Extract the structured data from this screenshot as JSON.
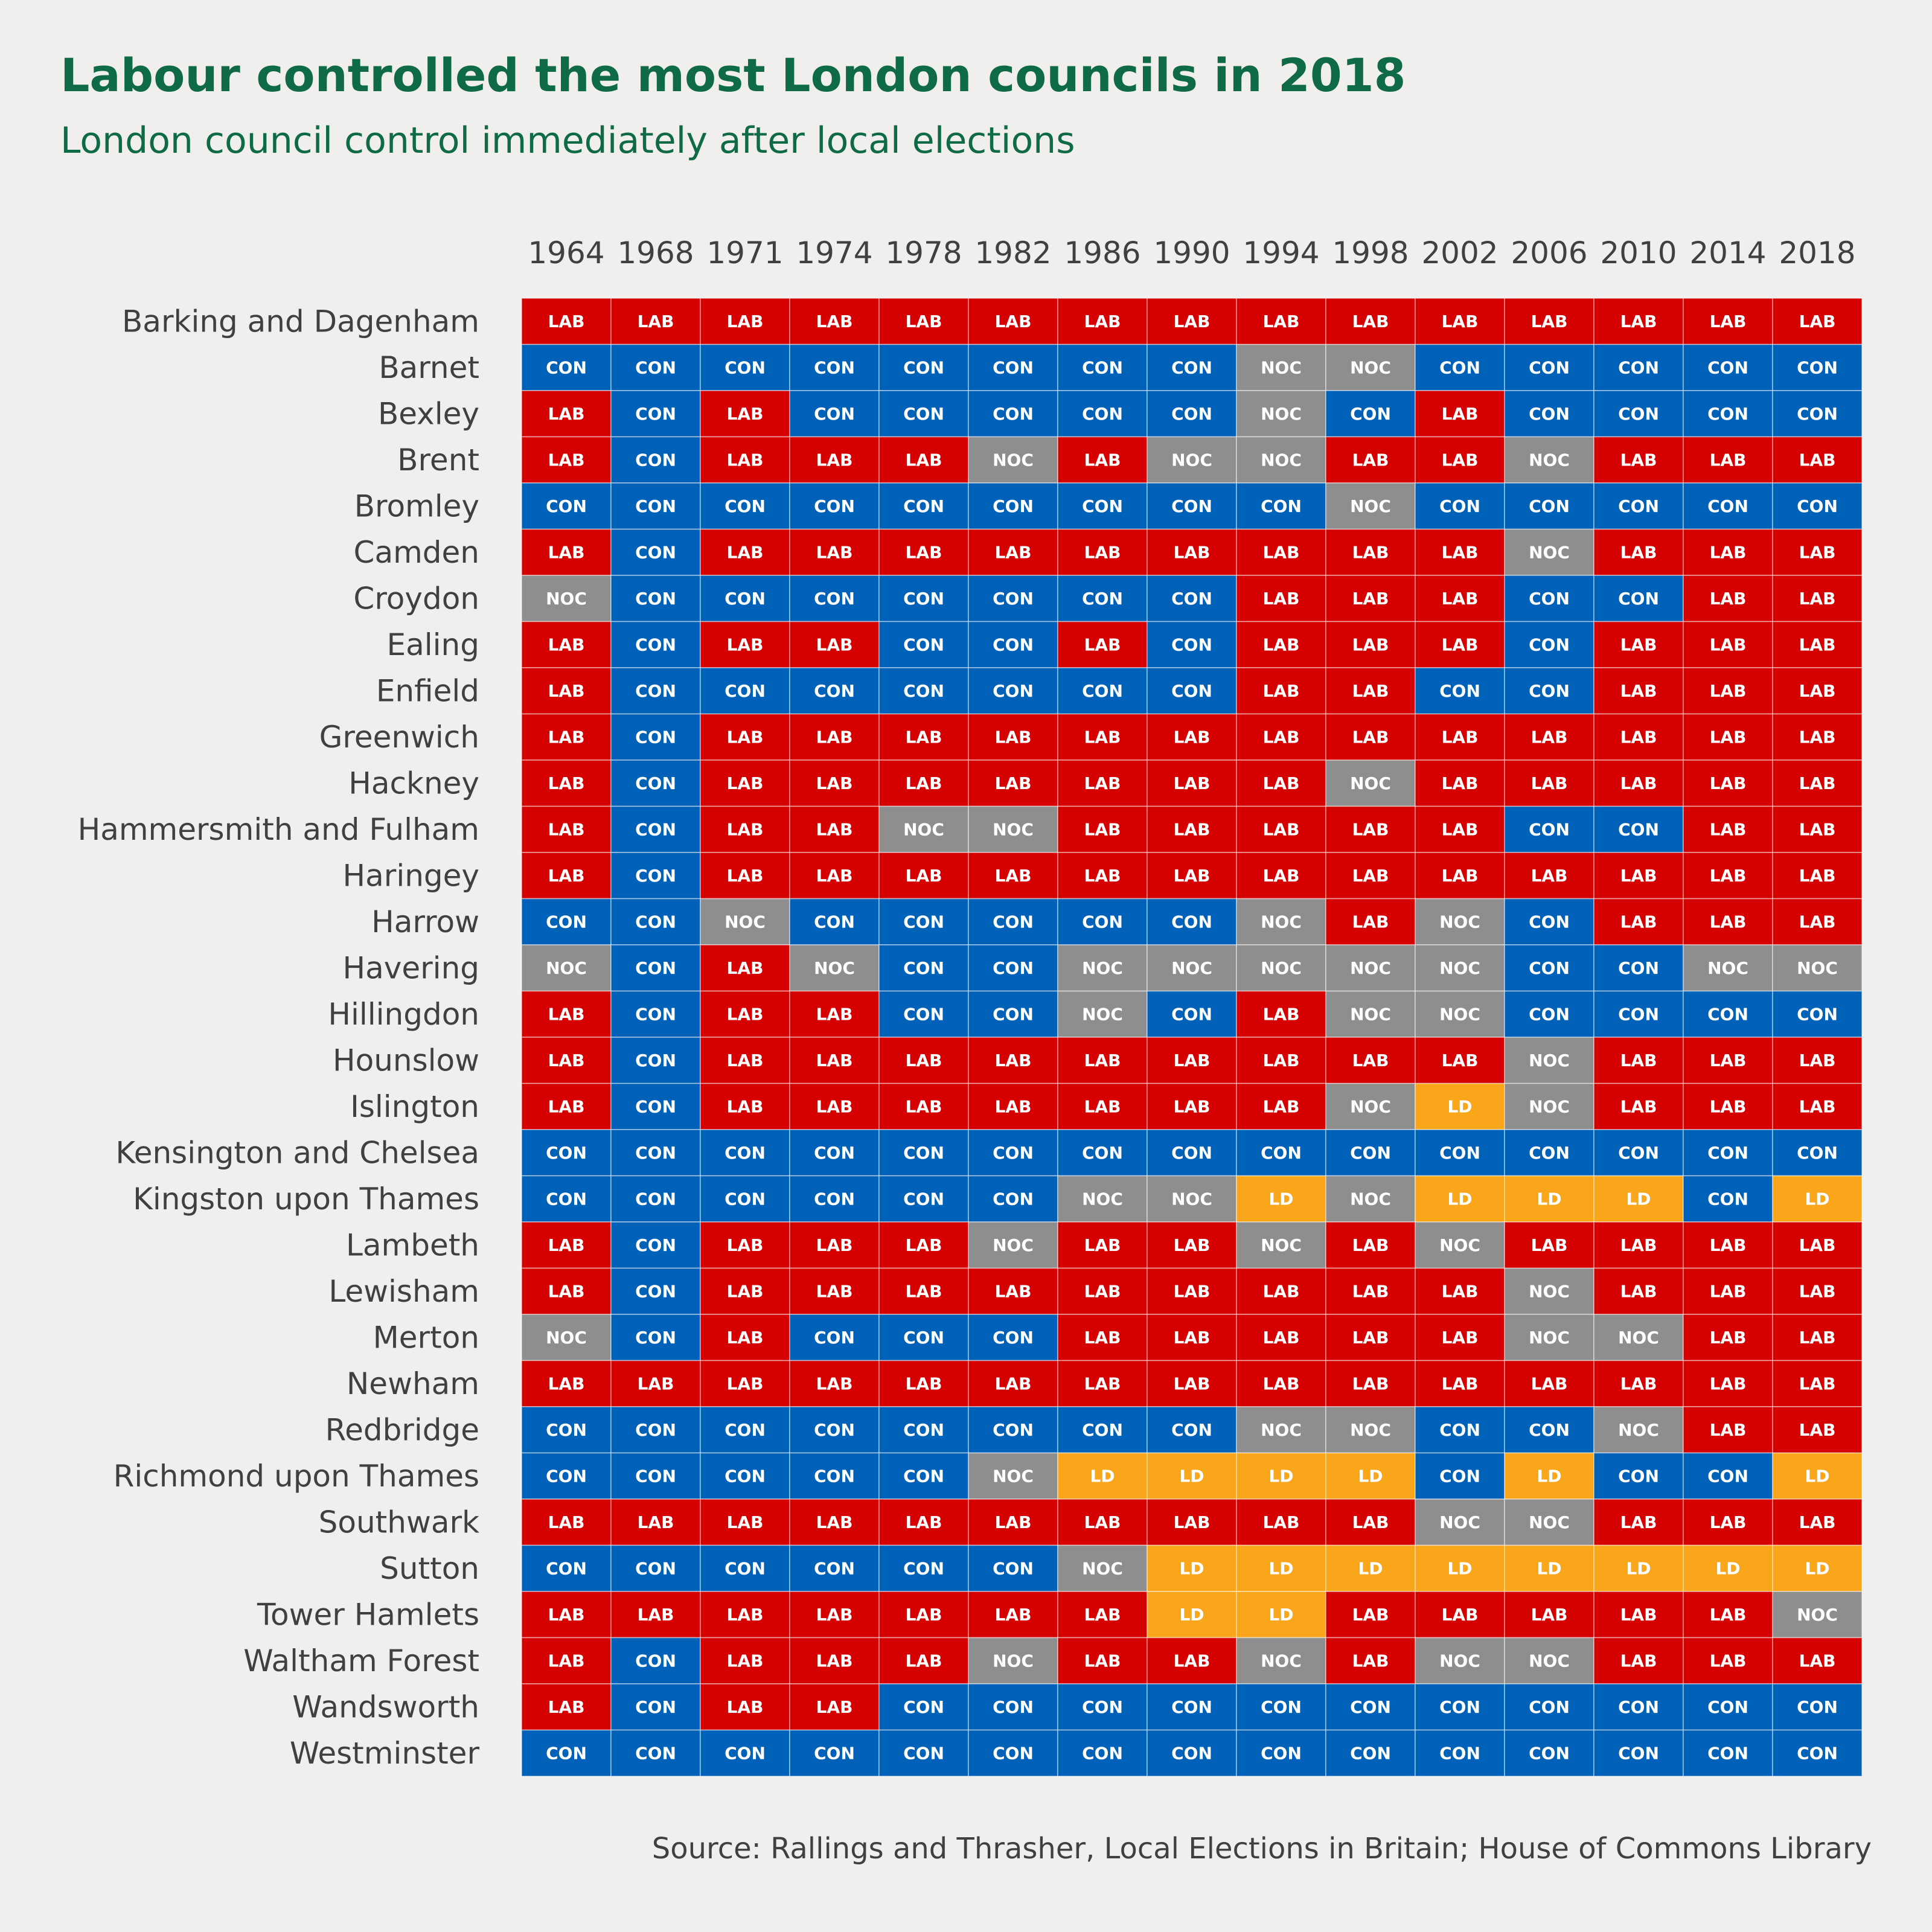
{
  "title": "Labour controlled the most London councils in 2018",
  "subtitle": "London council control immediately after local elections",
  "source": "Source: Rallings and Thrasher, Local Elections in Britain; House of Commons Library",
  "colors": {
    "LAB": "#d50000",
    "CON": "#0061b8",
    "NOC": "#8e8e8e",
    "LD": "#faa61a",
    "background": "#f0efed",
    "title": "#0f6a46",
    "label_text": "#404040",
    "cell_text": "#ffffff"
  },
  "chart_data": {
    "type": "heatmap",
    "x": [
      "1964",
      "1968",
      "1971",
      "1974",
      "1978",
      "1982",
      "1986",
      "1990",
      "1994",
      "1998",
      "2002",
      "2006",
      "2010",
      "2014",
      "2018"
    ],
    "y": [
      "Barking and Dagenham",
      "Barnet",
      "Bexley",
      "Brent",
      "Bromley",
      "Camden",
      "Croydon",
      "Ealing",
      "Enfield",
      "Greenwich",
      "Hackney",
      "Hammersmith and Fulham",
      "Haringey",
      "Harrow",
      "Havering",
      "Hillingdon",
      "Hounslow",
      "Islington",
      "Kensington and Chelsea",
      "Kingston upon Thames",
      "Lambeth",
      "Lewisham",
      "Merton",
      "Newham",
      "Redbridge",
      "Richmond upon Thames",
      "Southwark",
      "Sutton",
      "Tower Hamlets",
      "Waltham Forest",
      "Wandsworth",
      "Westminster"
    ],
    "categories": [
      "LAB",
      "CON",
      "NOC",
      "LD"
    ],
    "values": [
      [
        "LAB",
        "LAB",
        "LAB",
        "LAB",
        "LAB",
        "LAB",
        "LAB",
        "LAB",
        "LAB",
        "LAB",
        "LAB",
        "LAB",
        "LAB",
        "LAB",
        "LAB"
      ],
      [
        "CON",
        "CON",
        "CON",
        "CON",
        "CON",
        "CON",
        "CON",
        "CON",
        "NOC",
        "NOC",
        "CON",
        "CON",
        "CON",
        "CON",
        "CON"
      ],
      [
        "LAB",
        "CON",
        "LAB",
        "CON",
        "CON",
        "CON",
        "CON",
        "CON",
        "NOC",
        "CON",
        "LAB",
        "CON",
        "CON",
        "CON",
        "CON"
      ],
      [
        "LAB",
        "CON",
        "LAB",
        "LAB",
        "LAB",
        "NOC",
        "LAB",
        "NOC",
        "NOC",
        "LAB",
        "LAB",
        "NOC",
        "LAB",
        "LAB",
        "LAB"
      ],
      [
        "CON",
        "CON",
        "CON",
        "CON",
        "CON",
        "CON",
        "CON",
        "CON",
        "CON",
        "NOC",
        "CON",
        "CON",
        "CON",
        "CON",
        "CON"
      ],
      [
        "LAB",
        "CON",
        "LAB",
        "LAB",
        "LAB",
        "LAB",
        "LAB",
        "LAB",
        "LAB",
        "LAB",
        "LAB",
        "NOC",
        "LAB",
        "LAB",
        "LAB"
      ],
      [
        "NOC",
        "CON",
        "CON",
        "CON",
        "CON",
        "CON",
        "CON",
        "CON",
        "LAB",
        "LAB",
        "LAB",
        "CON",
        "CON",
        "LAB",
        "LAB"
      ],
      [
        "LAB",
        "CON",
        "LAB",
        "LAB",
        "CON",
        "CON",
        "LAB",
        "CON",
        "LAB",
        "LAB",
        "LAB",
        "CON",
        "LAB",
        "LAB",
        "LAB"
      ],
      [
        "LAB",
        "CON",
        "CON",
        "CON",
        "CON",
        "CON",
        "CON",
        "CON",
        "LAB",
        "LAB",
        "CON",
        "CON",
        "LAB",
        "LAB",
        "LAB"
      ],
      [
        "LAB",
        "CON",
        "LAB",
        "LAB",
        "LAB",
        "LAB",
        "LAB",
        "LAB",
        "LAB",
        "LAB",
        "LAB",
        "LAB",
        "LAB",
        "LAB",
        "LAB"
      ],
      [
        "LAB",
        "CON",
        "LAB",
        "LAB",
        "LAB",
        "LAB",
        "LAB",
        "LAB",
        "LAB",
        "NOC",
        "LAB",
        "LAB",
        "LAB",
        "LAB",
        "LAB"
      ],
      [
        "LAB",
        "CON",
        "LAB",
        "LAB",
        "NOC",
        "NOC",
        "LAB",
        "LAB",
        "LAB",
        "LAB",
        "LAB",
        "CON",
        "CON",
        "LAB",
        "LAB"
      ],
      [
        "LAB",
        "CON",
        "LAB",
        "LAB",
        "LAB",
        "LAB",
        "LAB",
        "LAB",
        "LAB",
        "LAB",
        "LAB",
        "LAB",
        "LAB",
        "LAB",
        "LAB"
      ],
      [
        "CON",
        "CON",
        "NOC",
        "CON",
        "CON",
        "CON",
        "CON",
        "CON",
        "NOC",
        "LAB",
        "NOC",
        "CON",
        "LAB",
        "LAB",
        "LAB"
      ],
      [
        "NOC",
        "CON",
        "LAB",
        "NOC",
        "CON",
        "CON",
        "NOC",
        "NOC",
        "NOC",
        "NOC",
        "NOC",
        "CON",
        "CON",
        "NOC",
        "NOC"
      ],
      [
        "LAB",
        "CON",
        "LAB",
        "LAB",
        "CON",
        "CON",
        "NOC",
        "CON",
        "LAB",
        "NOC",
        "NOC",
        "CON",
        "CON",
        "CON",
        "CON"
      ],
      [
        "LAB",
        "CON",
        "LAB",
        "LAB",
        "LAB",
        "LAB",
        "LAB",
        "LAB",
        "LAB",
        "LAB",
        "LAB",
        "NOC",
        "LAB",
        "LAB",
        "LAB"
      ],
      [
        "LAB",
        "CON",
        "LAB",
        "LAB",
        "LAB",
        "LAB",
        "LAB",
        "LAB",
        "LAB",
        "NOC",
        "LD",
        "NOC",
        "LAB",
        "LAB",
        "LAB"
      ],
      [
        "CON",
        "CON",
        "CON",
        "CON",
        "CON",
        "CON",
        "CON",
        "CON",
        "CON",
        "CON",
        "CON",
        "CON",
        "CON",
        "CON",
        "CON"
      ],
      [
        "CON",
        "CON",
        "CON",
        "CON",
        "CON",
        "CON",
        "NOC",
        "NOC",
        "LD",
        "NOC",
        "LD",
        "LD",
        "LD",
        "CON",
        "LD"
      ],
      [
        "LAB",
        "CON",
        "LAB",
        "LAB",
        "LAB",
        "NOC",
        "LAB",
        "LAB",
        "NOC",
        "LAB",
        "NOC",
        "LAB",
        "LAB",
        "LAB",
        "LAB"
      ],
      [
        "LAB",
        "CON",
        "LAB",
        "LAB",
        "LAB",
        "LAB",
        "LAB",
        "LAB",
        "LAB",
        "LAB",
        "LAB",
        "NOC",
        "LAB",
        "LAB",
        "LAB"
      ],
      [
        "NOC",
        "CON",
        "LAB",
        "CON",
        "CON",
        "CON",
        "LAB",
        "LAB",
        "LAB",
        "LAB",
        "LAB",
        "NOC",
        "NOC",
        "LAB",
        "LAB"
      ],
      [
        "LAB",
        "LAB",
        "LAB",
        "LAB",
        "LAB",
        "LAB",
        "LAB",
        "LAB",
        "LAB",
        "LAB",
        "LAB",
        "LAB",
        "LAB",
        "LAB",
        "LAB"
      ],
      [
        "CON",
        "CON",
        "CON",
        "CON",
        "CON",
        "CON",
        "CON",
        "CON",
        "NOC",
        "NOC",
        "CON",
        "CON",
        "NOC",
        "LAB",
        "LAB"
      ],
      [
        "CON",
        "CON",
        "CON",
        "CON",
        "CON",
        "NOC",
        "LD",
        "LD",
        "LD",
        "LD",
        "CON",
        "LD",
        "CON",
        "CON",
        "LD"
      ],
      [
        "LAB",
        "LAB",
        "LAB",
        "LAB",
        "LAB",
        "LAB",
        "LAB",
        "LAB",
        "LAB",
        "LAB",
        "NOC",
        "NOC",
        "LAB",
        "LAB",
        "LAB"
      ],
      [
        "CON",
        "CON",
        "CON",
        "CON",
        "CON",
        "CON",
        "NOC",
        "LD",
        "LD",
        "LD",
        "LD",
        "LD",
        "LD",
        "LD",
        "LD"
      ],
      [
        "LAB",
        "LAB",
        "LAB",
        "LAB",
        "LAB",
        "LAB",
        "LAB",
        "LD",
        "LD",
        "LAB",
        "LAB",
        "LAB",
        "LAB",
        "LAB",
        "NOC"
      ],
      [
        "LAB",
        "CON",
        "LAB",
        "LAB",
        "LAB",
        "NOC",
        "LAB",
        "LAB",
        "NOC",
        "LAB",
        "NOC",
        "NOC",
        "LAB",
        "LAB",
        "LAB"
      ],
      [
        "LAB",
        "CON",
        "LAB",
        "LAB",
        "CON",
        "CON",
        "CON",
        "CON",
        "CON",
        "CON",
        "CON",
        "CON",
        "CON",
        "CON",
        "CON"
      ],
      [
        "CON",
        "CON",
        "CON",
        "CON",
        "CON",
        "CON",
        "CON",
        "CON",
        "CON",
        "CON",
        "CON",
        "CON",
        "CON",
        "CON",
        "CON"
      ]
    ]
  }
}
